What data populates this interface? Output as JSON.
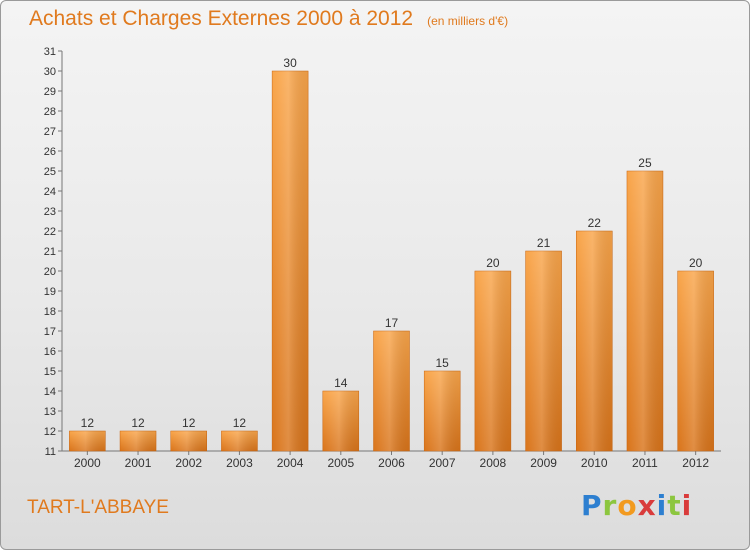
{
  "title": "Achats et Charges Externes 2000 à 2012",
  "unit": "(en milliers d'€)",
  "location": "TART-L'ABBAYE",
  "logo": "Proxiti",
  "colors": {
    "bar_light": "#f9a54a",
    "bar_dark": "#d9741a",
    "accent": "#e07a1e"
  },
  "chart_data": {
    "type": "bar",
    "categories": [
      "2000",
      "2001",
      "2002",
      "2003",
      "2004",
      "2005",
      "2006",
      "2007",
      "2008",
      "2009",
      "2010",
      "2011",
      "2012"
    ],
    "values": [
      12,
      12,
      12,
      12,
      30,
      14,
      17,
      15,
      20,
      21,
      22,
      25,
      20
    ],
    "ylim": [
      11,
      31
    ],
    "yticks": [
      11,
      12,
      13,
      14,
      15,
      16,
      17,
      18,
      19,
      20,
      21,
      22,
      23,
      24,
      25,
      26,
      27,
      28,
      29,
      30,
      31
    ],
    "grid": false,
    "xlabel": "",
    "ylabel": ""
  }
}
